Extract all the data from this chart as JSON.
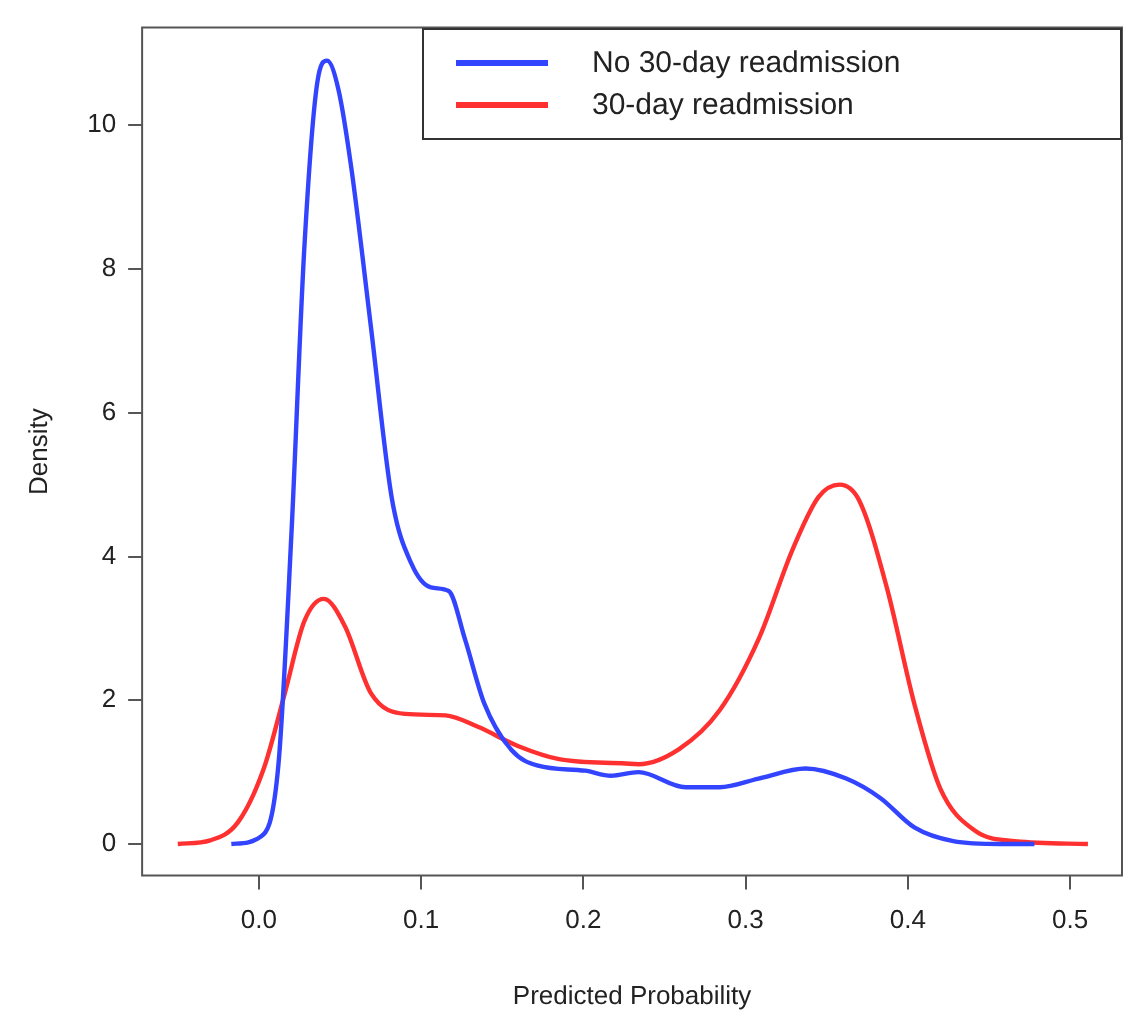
{
  "chart_data": {
    "type": "line",
    "xlabel": "Predicted Probability",
    "ylabel": "Density",
    "xlim": [
      -0.072,
      0.532
    ],
    "ylim": [
      -0.44,
      11.36
    ],
    "xticks": [
      {
        "value": 0,
        "label": "0.0"
      },
      0.1,
      0.2,
      0.3,
      0.4,
      0.5
    ],
    "yticks": [
      0,
      2,
      4,
      6,
      8,
      10
    ],
    "grid": false,
    "legend": "top right",
    "marker": "none",
    "line_style": "solid",
    "series": [
      {
        "name": "No 30-day readmission",
        "color": "#3344ff",
        "x": [
          -0.017,
          0.001,
          0.012,
          0.02,
          0.028,
          0.036,
          0.042,
          0.049,
          0.057,
          0.069,
          0.082,
          0.094,
          0.106,
          0.117,
          0.127,
          0.139,
          0.156,
          0.172,
          0.201,
          0.217,
          0.234,
          0.263,
          0.284,
          0.308,
          0.337,
          0.362,
          0.383,
          0.404,
          0.428,
          0.457,
          0.478
        ],
        "values": [
          0,
          0.1,
          1.1,
          4.3,
          8.3,
          10.6,
          10.9,
          10.5,
          9.4,
          7.2,
          4.8,
          3.9,
          3.57,
          3.52,
          2.85,
          1.95,
          1.3,
          1.09,
          1.02,
          0.95,
          1.0,
          0.79,
          0.79,
          0.91,
          1.05,
          0.91,
          0.64,
          0.23,
          0.04,
          0,
          0
        ]
      },
      {
        "name": "30-day readmission",
        "color": "#ff3030",
        "x": [
          -0.05,
          -0.03,
          -0.013,
          0.003,
          0.016,
          0.028,
          0.04,
          0.053,
          0.069,
          0.09,
          0.115,
          0.135,
          0.16,
          0.185,
          0.226,
          0.234,
          0.259,
          0.284,
          0.308,
          0.329,
          0.345,
          0.358,
          0.37,
          0.387,
          0.404,
          0.42,
          0.441,
          0.466,
          0.511
        ],
        "values": [
          0,
          0.05,
          0.3,
          1.05,
          2.1,
          3.1,
          3.41,
          3.03,
          2.1,
          1.81,
          1.79,
          1.63,
          1.36,
          1.18,
          1.12,
          1.11,
          1.32,
          1.86,
          2.85,
          4.1,
          4.83,
          5.0,
          4.78,
          3.57,
          1.95,
          0.77,
          0.19,
          0.04,
          0
        ]
      }
    ]
  }
}
